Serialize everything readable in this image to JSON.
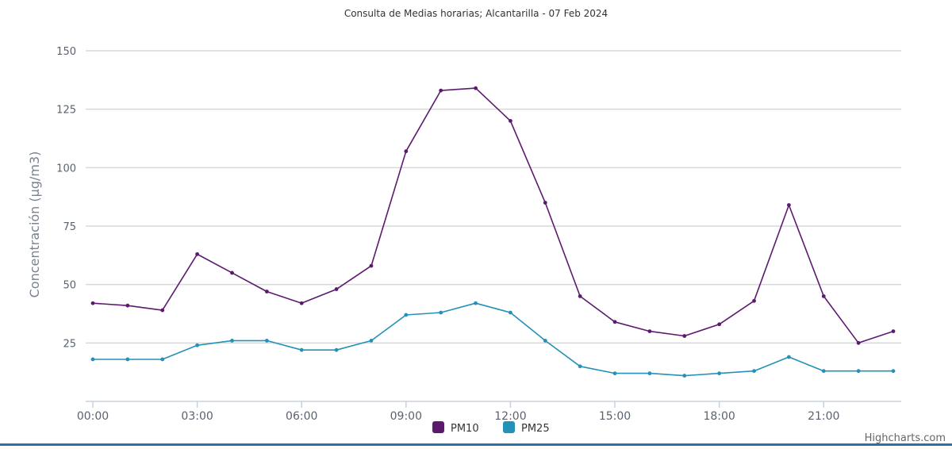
{
  "chart_data": {
    "type": "line",
    "title": "Consulta de Medias horarias; Alcantarilla - 07 Feb 2024",
    "xlabel": "",
    "ylabel": "Concentración (µg/m3)",
    "x": [
      "00:00",
      "01:00",
      "02:00",
      "03:00",
      "04:00",
      "05:00",
      "06:00",
      "07:00",
      "08:00",
      "09:00",
      "10:00",
      "11:00",
      "12:00",
      "13:00",
      "14:00",
      "15:00",
      "16:00",
      "17:00",
      "18:00",
      "19:00",
      "20:00",
      "21:00",
      "22:00",
      "23:00"
    ],
    "x_tick_labels": [
      "00:00",
      "03:00",
      "06:00",
      "09:00",
      "12:00",
      "15:00",
      "18:00",
      "21:00"
    ],
    "y_ticks": [
      25,
      50,
      75,
      100,
      125,
      150
    ],
    "ylim": [
      0,
      150
    ],
    "grid": true,
    "legend_position": "bottom-center",
    "series": [
      {
        "name": "PM10",
        "color": "#5c1a6e",
        "values": [
          42,
          41,
          39,
          63,
          55,
          47,
          42,
          48,
          58,
          107,
          133,
          134,
          120,
          85,
          45,
          34,
          30,
          28,
          33,
          43,
          84,
          45,
          25,
          30
        ]
      },
      {
        "name": "PM25",
        "color": "#2491b8",
        "values": [
          18,
          18,
          18,
          24,
          26,
          26,
          22,
          22,
          26,
          37,
          38,
          42,
          38,
          26,
          15,
          12,
          12,
          11,
          12,
          13,
          19,
          13,
          13,
          13
        ]
      }
    ]
  },
  "credits": "Highcharts.com"
}
